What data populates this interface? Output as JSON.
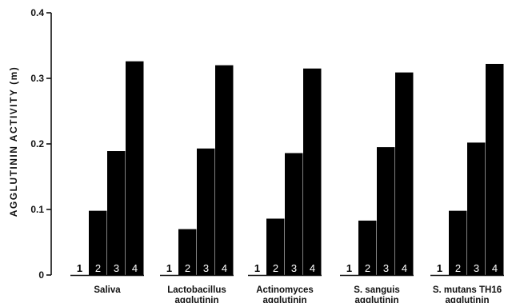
{
  "chart_data": {
    "type": "bar",
    "ylabel": "AGGLUTININ ACTIVITY (m)",
    "ylim": [
      0,
      0.4
    ],
    "yticks": [
      "0",
      "0.1",
      "0.2",
      "0.3",
      "0.4"
    ],
    "bar_labels": [
      "1",
      "2",
      "3",
      "4"
    ],
    "groups": [
      {
        "label_line1": "Saliva",
        "label_line2": "",
        "values": [
          0.0,
          0.098,
          0.189,
          0.326
        ]
      },
      {
        "label_line1": "Lactobacillus",
        "label_line2": "agglutinin",
        "values": [
          0.0,
          0.07,
          0.193,
          0.32
        ]
      },
      {
        "label_line1": "Actinomyces",
        "label_line2": "agglutinin",
        "values": [
          0.0,
          0.086,
          0.186,
          0.315
        ]
      },
      {
        "label_line1": "S. sanguis",
        "label_line2": "agglutinin",
        "values": [
          0.0,
          0.083,
          0.195,
          0.309
        ]
      },
      {
        "label_line1": "S. mutans TH16",
        "label_line2": "agglutinin",
        "values": [
          0.0,
          0.098,
          0.202,
          0.322
        ]
      }
    ]
  }
}
